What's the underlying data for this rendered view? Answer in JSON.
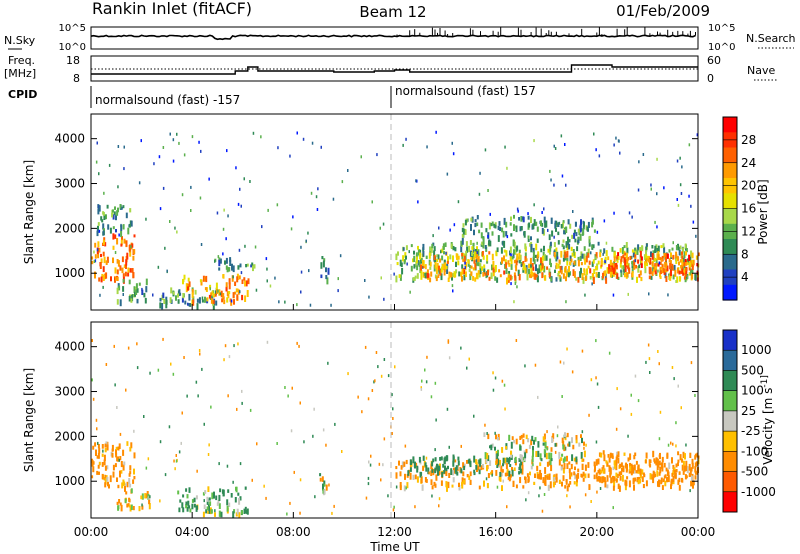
{
  "header": {
    "station": "Rankin Inlet (fitACF)",
    "beam": "Beam 12",
    "date": "01/Feb/2009"
  },
  "strips": {
    "nsky_label": "N.Sky",
    "nsky_ticks": [
      "10^5",
      "10^0"
    ],
    "nsearch_label": "N.Search",
    "nsearch_ticks": [
      "10^5",
      "10^0"
    ],
    "freq_label": "Freq.",
    "freq_unit": "[MHz]",
    "freq_ticks": [
      "18",
      "8"
    ],
    "nave_label": "Nave",
    "nave_ticks": [
      "60",
      "0"
    ],
    "cpid_label": "CPID",
    "cpid_segments": [
      "normalsound (fast) -157",
      "normalsound (fast) 157"
    ]
  },
  "chart_data": [
    {
      "type": "heatmap",
      "name": "power",
      "ylabel": "Slant Range [km]",
      "yticks": [
        1000,
        2000,
        3000,
        4000
      ],
      "ylim": [
        180,
        4550
      ],
      "colorbar": {
        "label": "Power [dB]",
        "ticks": [
          "28",
          "24",
          "20",
          "16",
          "12",
          "8",
          "4"
        ],
        "colors": [
          "#ff0000",
          "#ff3000",
          "#ff6000",
          "#ff9a00",
          "#ffc400",
          "#e6e000",
          "#a8d84a",
          "#5bb04d",
          "#2f8a55",
          "#2a6a8c",
          "#2040c0",
          "#0018ff"
        ]
      },
      "regions": [
        {
          "t": [
            0.0,
            1.7
          ],
          "r": [
            900,
            1900
          ],
          "v": 24
        },
        {
          "t": [
            0.2,
            1.6
          ],
          "r": [
            1900,
            2600
          ],
          "v": 10
        },
        {
          "t": [
            1.0,
            2.2
          ],
          "r": [
            400,
            900
          ],
          "v": 10
        },
        {
          "t": [
            2.5,
            5.0
          ],
          "r": [
            300,
            700
          ],
          "v": 10
        },
        {
          "t": [
            3.5,
            6.2
          ],
          "r": [
            400,
            1000
          ],
          "v": 22
        },
        {
          "t": [
            4.8,
            6.5
          ],
          "r": [
            1100,
            1400
          ],
          "v": 9
        },
        {
          "t": [
            9.0,
            9.4
          ],
          "r": [
            900,
            1400
          ],
          "v": 8
        },
        {
          "t": [
            12.0,
            24.0
          ],
          "r": [
            900,
            1700
          ],
          "v": 12
        },
        {
          "t": [
            13.0,
            24.0
          ],
          "r": [
            900,
            1500
          ],
          "v": 22
        },
        {
          "t": [
            14.5,
            20.0
          ],
          "r": [
            1700,
            2300
          ],
          "v": 10
        },
        {
          "t": [
            20.5,
            24.0
          ],
          "r": [
            1000,
            1500
          ],
          "v": 25
        }
      ]
    },
    {
      "type": "heatmap",
      "name": "velocity",
      "ylabel": "Slant Range [km]",
      "yticks": [
        1000,
        2000,
        3000,
        4000
      ],
      "ylim": [
        180,
        4550
      ],
      "colorbar": {
        "label": "Velocity [m s^-1]",
        "ticks": [
          "1000",
          "500",
          "100",
          "25",
          "-25",
          "-100",
          "-500",
          "-1000"
        ],
        "colors": [
          "#1830c8",
          "#2a6a9a",
          "#2f8a55",
          "#62c04a",
          "#c8c8c0",
          "#ffc000",
          "#ff8c00",
          "#ff5a00",
          "#ff0000"
        ]
      },
      "regions": [
        {
          "t": [
            0.0,
            1.7
          ],
          "r": [
            900,
            1900
          ],
          "v": -180
        },
        {
          "t": [
            1.0,
            2.4
          ],
          "r": [
            400,
            900
          ],
          "v": -100
        },
        {
          "t": [
            3.4,
            6.2
          ],
          "r": [
            300,
            900
          ],
          "v": 120
        },
        {
          "t": [
            9.0,
            9.4
          ],
          "r": [
            800,
            1300
          ],
          "v": 0
        },
        {
          "t": [
            12.0,
            24.0
          ],
          "r": [
            900,
            1500
          ],
          "v": -200
        },
        {
          "t": [
            12.5,
            17.0
          ],
          "r": [
            1200,
            1600
          ],
          "v": 300
        },
        {
          "t": [
            15.5,
            19.5
          ],
          "r": [
            1500,
            2100
          ],
          "v": 0
        },
        {
          "t": [
            20.0,
            24.0
          ],
          "r": [
            1000,
            1700
          ],
          "v": -250
        }
      ]
    }
  ],
  "xaxis": {
    "ticks": [
      "00:00",
      "04:00",
      "08:00",
      "12:00",
      "16:00",
      "20:00",
      "00:00"
    ],
    "label": "Time UT",
    "xlim": [
      0,
      24
    ]
  }
}
